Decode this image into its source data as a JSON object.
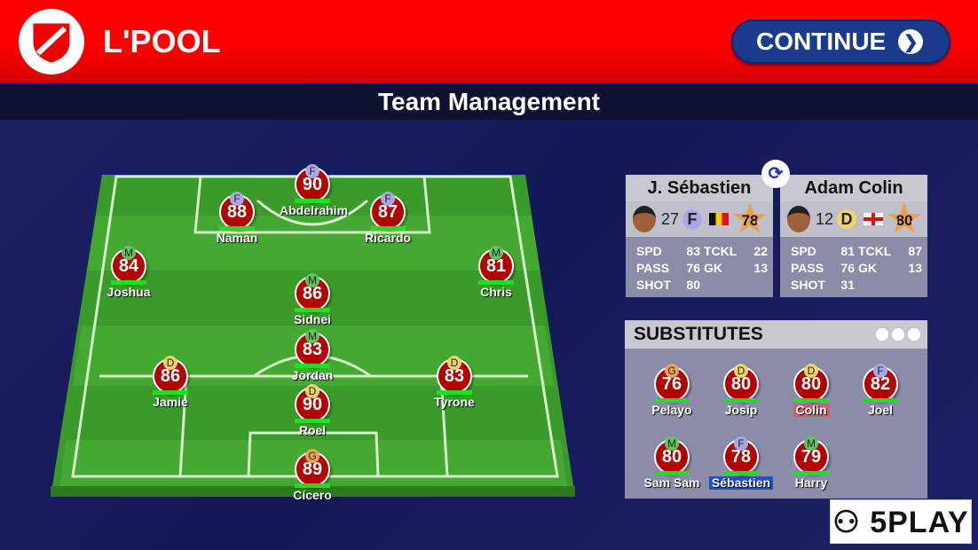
{
  "header": {
    "club": "L'POOL",
    "continue_label": "CONTINUE",
    "title": "Team Management"
  },
  "position_colors": {
    "F": "#a8a8e6",
    "M": "#5ec65e",
    "D": "#f2d466",
    "G": "#eba456"
  },
  "lineup": [
    {
      "name": "Abdelrahim",
      "pos": "F",
      "rating": "90"
    },
    {
      "name": "Naman",
      "pos": "F",
      "rating": "88"
    },
    {
      "name": "Ricardo",
      "pos": "F",
      "rating": "87"
    },
    {
      "name": "Joshua",
      "pos": "M",
      "rating": "84"
    },
    {
      "name": "Chris",
      "pos": "M",
      "rating": "81"
    },
    {
      "name": "Sidnei",
      "pos": "M",
      "rating": "86"
    },
    {
      "name": "Jordan",
      "pos": "M",
      "rating": "83"
    },
    {
      "name": "Jamie",
      "pos": "D",
      "rating": "86"
    },
    {
      "name": "Tyrone",
      "pos": "D",
      "rating": "83"
    },
    {
      "name": "Roel",
      "pos": "D",
      "rating": "90"
    },
    {
      "name": "Cícero",
      "pos": "G",
      "rating": "89"
    }
  ],
  "compare": [
    {
      "name": "J. Sébastien",
      "age": "27",
      "pos": "F",
      "flag": "belgium",
      "rating": "78",
      "spd": "83",
      "tckl": "22",
      "pass": "76",
      "gk": "13",
      "shot": "80"
    },
    {
      "name": "Adam Colin",
      "age": "12",
      "pos": "D",
      "flag": "england",
      "rating": "80",
      "spd": "81",
      "tckl": "87",
      "pass": "76",
      "gk": "13",
      "shot": "31"
    }
  ],
  "stat_labels": {
    "spd": "SPD",
    "tckl": "TCKL",
    "pass": "PASS",
    "gk": "GK",
    "shot": "SHOT"
  },
  "substitutes": {
    "title": "SUBSTITUTES",
    "players": [
      {
        "name": "Pelayo",
        "pos": "G",
        "rating": "76"
      },
      {
        "name": "Josip",
        "pos": "D",
        "rating": "80"
      },
      {
        "name": "Colin",
        "pos": "D",
        "rating": "80"
      },
      {
        "name": "Joel",
        "pos": "F",
        "rating": "82"
      },
      {
        "name": "Sam Sam",
        "pos": "M",
        "rating": "80"
      },
      {
        "name": "Sébastien",
        "pos": "F",
        "rating": "78"
      },
      {
        "name": "Harry",
        "pos": "M",
        "rating": "79"
      }
    ]
  },
  "watermark": "5PLAY"
}
